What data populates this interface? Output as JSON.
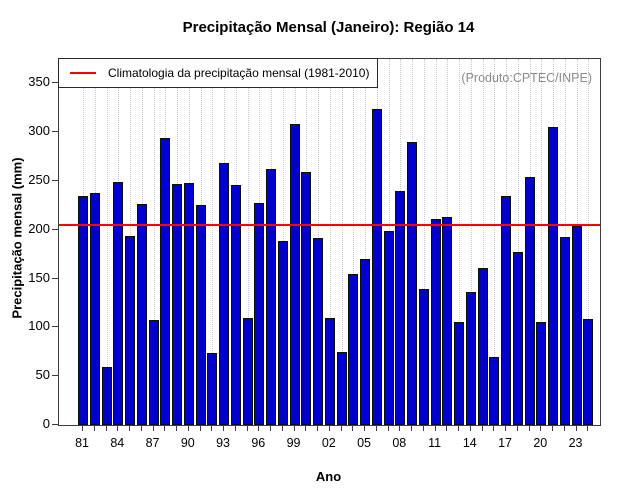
{
  "chart_data": {
    "type": "bar",
    "title": "Precipitação Mensal (Janeiro): Região 14",
    "xlabel": "Ano",
    "ylabel": "Precipitação mensal (mm)",
    "annotation": "(Produto:CPTEC/INPE)",
    "ylim": [
      0,
      350
    ],
    "y_ticks": [
      0,
      50,
      100,
      150,
      200,
      250,
      300,
      350
    ],
    "x_tick_labels": [
      "81",
      "84",
      "87",
      "90",
      "93",
      "96",
      "99",
      "02",
      "05",
      "08",
      "11",
      "14",
      "17",
      "20",
      "23"
    ],
    "x_label_every": 3,
    "grid": "vertical-dotted",
    "legend_position": "top-left-inside",
    "bar_color": "#0000cd",
    "years": [
      1981,
      1982,
      1983,
      1984,
      1985,
      1986,
      1987,
      1988,
      1989,
      1990,
      1991,
      1992,
      1993,
      1994,
      1995,
      1996,
      1997,
      1998,
      1999,
      2000,
      2001,
      2002,
      2003,
      2004,
      2005,
      2006,
      2007,
      2008,
      2009,
      2010,
      2011,
      2012,
      2013,
      2014,
      2015,
      2016,
      2017,
      2018,
      2019,
      2020,
      2021,
      2022,
      2023,
      2024
    ],
    "values": [
      235,
      238,
      59,
      249,
      194,
      226,
      108,
      294,
      247,
      248,
      225,
      74,
      268,
      246,
      110,
      227,
      262,
      188,
      308,
      259,
      192,
      110,
      75,
      155,
      170,
      324,
      199,
      240,
      290,
      139,
      211,
      213,
      105,
      136,
      161,
      70,
      235,
      177,
      254,
      106,
      305,
      193,
      204,
      109
    ],
    "reference_line": {
      "label": "Climatologia da precipitação mensal (1981-2010)",
      "value": 205,
      "color": "#ff0000"
    }
  }
}
